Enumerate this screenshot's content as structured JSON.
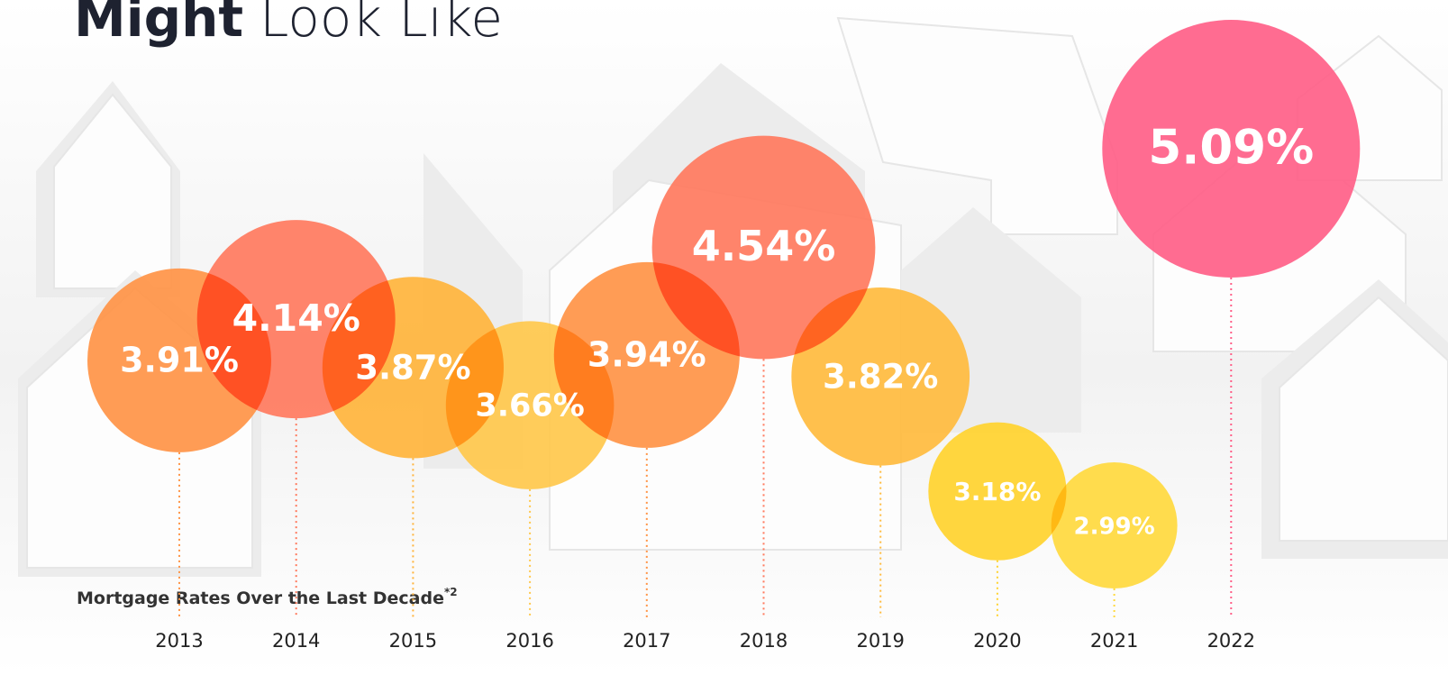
{
  "chart_data": {
    "type": "bubble",
    "title": {
      "strong": "Might",
      "light": "Look Like"
    },
    "subtitle": "Mortgage Rates Over the Last Decade",
    "subtitle_note": "*2",
    "categories": [
      "2013",
      "2014",
      "2015",
      "2016",
      "2017",
      "2018",
      "2019",
      "2020",
      "2021",
      "2022"
    ],
    "values": [
      3.91,
      4.14,
      3.87,
      3.66,
      3.94,
      4.54,
      3.82,
      3.18,
      2.99,
      5.09
    ],
    "value_labels": [
      "3.91%",
      "4.14%",
      "3.87%",
      "3.66%",
      "3.94%",
      "4.54%",
      "3.82%",
      "3.18%",
      "2.99%",
      "5.09%"
    ],
    "colors": [
      "#ff9446",
      "#ff7a5e",
      "#ffb43c",
      "#ffc84c",
      "#ff9446",
      "#ff7a5e",
      "#ffbb3e",
      "#ffd32e",
      "#ffd93e",
      "#ff5f88"
    ]
  }
}
